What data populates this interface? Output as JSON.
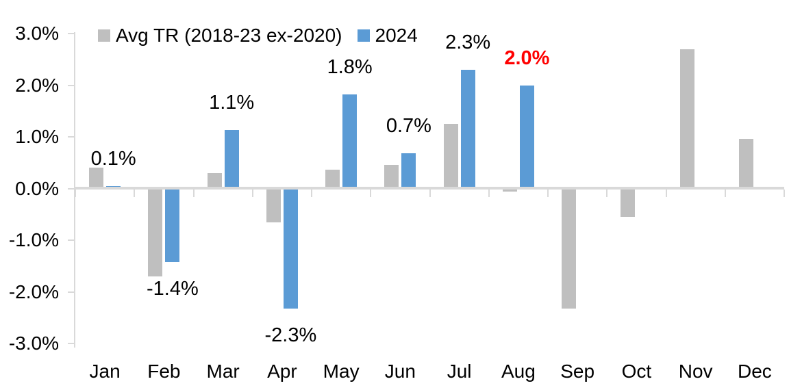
{
  "chart_data": {
    "type": "bar",
    "title": "",
    "xlabel": "",
    "ylabel": "",
    "categories": [
      "Jan",
      "Feb",
      "Mar",
      "Apr",
      "May",
      "Jun",
      "Jul",
      "Aug",
      "Sep",
      "Oct",
      "Nov",
      "Dec"
    ],
    "series": [
      {
        "name": "Avg TR (2018-23 ex-2020)",
        "color": "#BFBFBF",
        "values": [
          0.4,
          -1.7,
          0.3,
          -0.65,
          0.37,
          0.46,
          1.25,
          -0.06,
          -2.33,
          -0.55,
          2.7,
          0.96
        ]
      },
      {
        "name": "2024",
        "color": "#5B9BD5",
        "values": [
          0.05,
          -1.42,
          1.13,
          -2.33,
          1.82,
          0.68,
          2.3,
          2.0,
          null,
          null,
          null,
          null
        ]
      }
    ],
    "data_labels": [
      {
        "category": "Jan",
        "text": "0.1%",
        "color": "#000000",
        "bold": false
      },
      {
        "category": "Feb",
        "text": "-1.4%",
        "color": "#000000",
        "bold": false
      },
      {
        "category": "Mar",
        "text": "1.1%",
        "color": "#000000",
        "bold": false
      },
      {
        "category": "Apr",
        "text": "-2.3%",
        "color": "#000000",
        "bold": false
      },
      {
        "category": "May",
        "text": "1.8%",
        "color": "#000000",
        "bold": false
      },
      {
        "category": "Jun",
        "text": "0.7%",
        "color": "#000000",
        "bold": false
      },
      {
        "category": "Jul",
        "text": "2.3%",
        "color": "#000000",
        "bold": false
      },
      {
        "category": "Aug",
        "text": "2.0%",
        "color": "#FF0000",
        "bold": true
      }
    ],
    "y_axis": {
      "tick_labels": [
        "3.0%",
        "2.0%",
        "1.0%",
        "0.0%",
        "-1.0%",
        "-2.0%",
        "-3.0%"
      ],
      "tick_values": [
        3,
        2,
        1,
        0,
        -1,
        -2,
        -3
      ],
      "min": -3.0,
      "max": 3.0
    },
    "legend": {
      "position": "top",
      "entries": [
        {
          "label": "Avg TR (2018-23 ex-2020)",
          "color": "#BFBFBF"
        },
        {
          "label": "2024",
          "color": "#5B9BD5"
        }
      ]
    },
    "grid": false,
    "axis_color": "#D9D9D9",
    "label_text_color": "#000000",
    "highlight_color": "#FF0000"
  }
}
